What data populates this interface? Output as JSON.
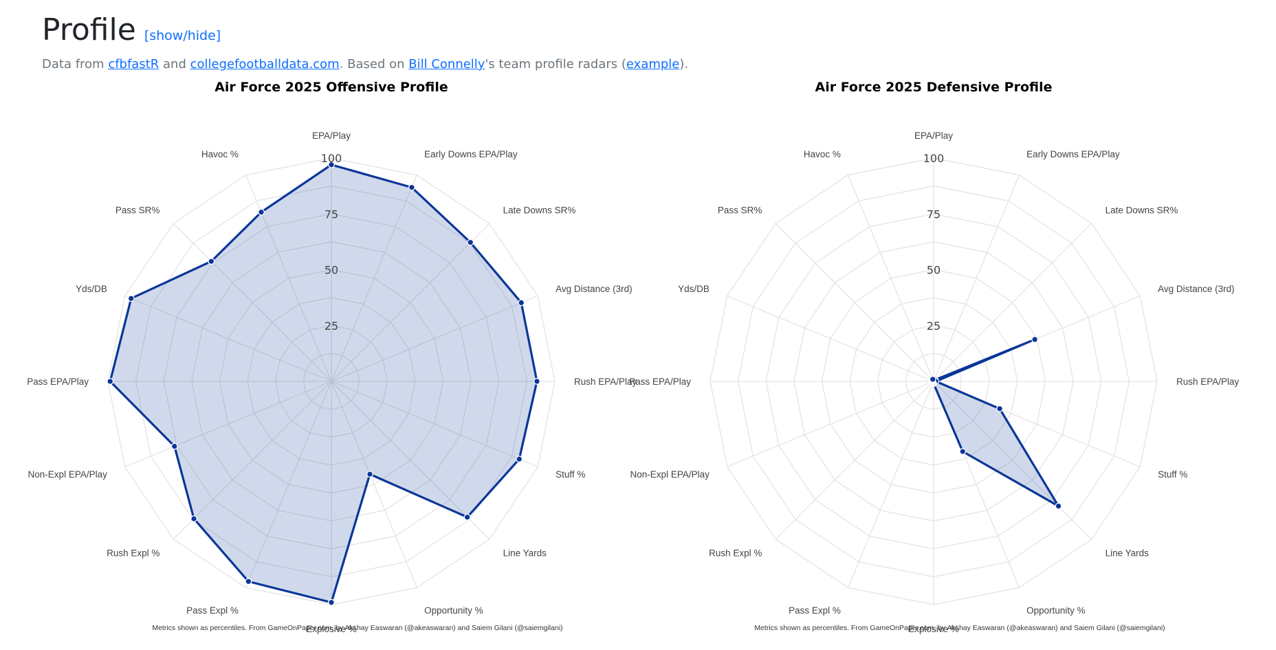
{
  "header": {
    "title": "Profile",
    "toggle_label": "[show/hide]",
    "subtitle": {
      "t1": "Data from ",
      "link1": "cfbfastR",
      "t2": " and ",
      "link2": "collegefootballdata.com",
      "t3": ". Based on ",
      "link3": "Bill Connelly",
      "t4": "'s team profile radars (",
      "link4": "example",
      "t5": ")."
    }
  },
  "colors": {
    "line": "#0a3699",
    "fill": "rgba(51, 90, 170, 0.23)",
    "grid": "#e2e2e2",
    "link": "#0d6efd"
  },
  "chart_data": [
    {
      "type": "radar",
      "title": "Air Force 2025 Offensive Profile",
      "axes": [
        "EPA/Play",
        "Early Downs EPA/Play",
        "Late Downs SR%",
        "Avg Distance (3rd)",
        "Rush EPA/Play",
        "Stuff %",
        "Line Yards",
        "Opportunity %",
        "Explosive %",
        "Pass Expl %",
        "Rush Expl %",
        "Non-Expl EPA/Play",
        "Pass EPA/Play",
        "Yds/DB",
        "Pass SR%",
        "Havoc %"
      ],
      "values": [
        97,
        94,
        88,
        92,
        92,
        91,
        86,
        45,
        99,
        97,
        87,
        76,
        99,
        97,
        76,
        82
      ],
      "rticks": [
        25,
        50,
        75,
        100
      ],
      "range": [
        0,
        100
      ],
      "credit": "Metrics shown as percentiles. From GameOnPaper.com, by Akshay Easwaran (@akeaswaran) and Saiem Gilani (@saiemgilani)"
    },
    {
      "type": "radar",
      "title": "Air Force 2025 Defensive Profile",
      "axes": [
        "EPA/Play",
        "Early Downs EPA/Play",
        "Late Downs SR%",
        "Avg Distance (3rd)",
        "Rush EPA/Play",
        "Stuff %",
        "Line Yards",
        "Opportunity %",
        "Explosive %",
        "Pass Expl %",
        "Rush Expl %",
        "Non-Expl EPA/Play",
        "Pass EPA/Play",
        "Yds/DB",
        "Pass SR%",
        "Havoc %"
      ],
      "values": [
        1,
        1,
        1,
        49,
        1,
        32,
        79,
        34,
        1,
        1,
        1,
        1,
        1,
        1,
        1,
        1
      ],
      "rticks": [
        25,
        50,
        75,
        100
      ],
      "range": [
        0,
        100
      ],
      "credit": "Metrics shown as percentiles. From GameOnPaper.com, by Akshay Easwaran (@akeaswaran) and Saiem Gilani (@saiemgilani)"
    }
  ]
}
